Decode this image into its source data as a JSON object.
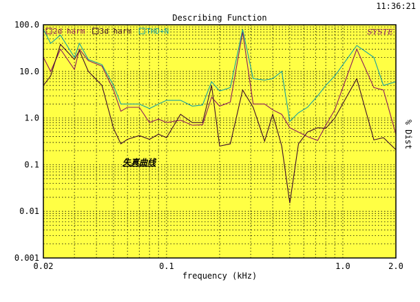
{
  "window": {
    "clock": "11:36:21"
  },
  "colors": {
    "plot_bg": "#ffff44",
    "grid": "#000000",
    "frame": "#000000",
    "series_2d": "#8b1a5a",
    "series_3d": "#3a0a2a",
    "series_thdn": "#16a0a0",
    "brand": "#8a1a6a",
    "page_bg": "#ffffff"
  },
  "brand_mark": "SYSTE",
  "annotation": "失真曲线",
  "chart_data": {
    "type": "line",
    "title": "Describing Function",
    "xlabel": "frequency (kHz)",
    "ylabel": "% Dist",
    "x_scale": "log",
    "y_scale": "log",
    "xlim": [
      0.02,
      2.0
    ],
    "ylim": [
      0.001,
      100.0
    ],
    "grid": true,
    "legend_position": "top-left",
    "x_ticks": [
      {
        "value": 0.02,
        "label": "0.02"
      },
      {
        "value": 0.1,
        "label": "0.1"
      },
      {
        "value": 1.0,
        "label": "1.0"
      },
      {
        "value": 2.0,
        "label": "2.0"
      }
    ],
    "y_ticks": [
      {
        "value": 100,
        "label": "100.0"
      },
      {
        "value": 10,
        "label": "10.0"
      },
      {
        "value": 1,
        "label": "1.0"
      },
      {
        "value": 0.1,
        "label": "0.1"
      },
      {
        "value": 0.01,
        "label": "0.01"
      },
      {
        "value": 0.001,
        "label": "0.001"
      }
    ],
    "series": [
      {
        "name": "2d harm",
        "color": "#8b1a5a",
        "points": [
          [
            0.02,
            20
          ],
          [
            0.022,
            10
          ],
          [
            0.025,
            30
          ],
          [
            0.03,
            11
          ],
          [
            0.032,
            30
          ],
          [
            0.036,
            17
          ],
          [
            0.043,
            13
          ],
          [
            0.05,
            4
          ],
          [
            0.055,
            1.4
          ],
          [
            0.06,
            1.7
          ],
          [
            0.07,
            1.7
          ],
          [
            0.08,
            0.8
          ],
          [
            0.09,
            0.95
          ],
          [
            0.1,
            0.8
          ],
          [
            0.12,
            0.9
          ],
          [
            0.14,
            0.7
          ],
          [
            0.16,
            0.72
          ],
          [
            0.18,
            2.8
          ],
          [
            0.2,
            1.8
          ],
          [
            0.23,
            2.2
          ],
          [
            0.27,
            70
          ],
          [
            0.31,
            2.0
          ],
          [
            0.36,
            2.0
          ],
          [
            0.4,
            1.5
          ],
          [
            0.45,
            1.2
          ],
          [
            0.5,
            0.62
          ],
          [
            0.56,
            0.5
          ],
          [
            0.63,
            0.4
          ],
          [
            0.72,
            0.33
          ],
          [
            0.8,
            0.7
          ],
          [
            0.9,
            1.5
          ],
          [
            1.2,
            30
          ],
          [
            1.5,
            4.5
          ],
          [
            1.7,
            4.0
          ],
          [
            2.0,
            0.45
          ]
        ]
      },
      {
        "name": "3d harm",
        "color": "#3a0a2a",
        "points": [
          [
            0.02,
            5
          ],
          [
            0.022,
            8
          ],
          [
            0.025,
            38
          ],
          [
            0.03,
            18
          ],
          [
            0.032,
            28
          ],
          [
            0.036,
            10
          ],
          [
            0.043,
            5
          ],
          [
            0.05,
            0.6
          ],
          [
            0.055,
            0.28
          ],
          [
            0.06,
            0.35
          ],
          [
            0.07,
            0.42
          ],
          [
            0.08,
            0.35
          ],
          [
            0.09,
            0.45
          ],
          [
            0.1,
            0.38
          ],
          [
            0.12,
            1.2
          ],
          [
            0.14,
            0.8
          ],
          [
            0.16,
            0.8
          ],
          [
            0.18,
            5.0
          ],
          [
            0.2,
            0.25
          ],
          [
            0.23,
            0.28
          ],
          [
            0.27,
            4.0
          ],
          [
            0.31,
            1.7
          ],
          [
            0.36,
            0.32
          ],
          [
            0.4,
            1.2
          ],
          [
            0.45,
            0.25
          ],
          [
            0.5,
            0.015
          ],
          [
            0.56,
            0.28
          ],
          [
            0.63,
            0.5
          ],
          [
            0.72,
            0.62
          ],
          [
            0.8,
            0.6
          ],
          [
            0.9,
            1.0
          ],
          [
            1.2,
            7.0
          ],
          [
            1.5,
            0.34
          ],
          [
            1.7,
            0.38
          ],
          [
            2.0,
            0.21
          ]
        ]
      },
      {
        "name": "THD+N",
        "color": "#16a0a0",
        "points": [
          [
            0.02,
            80
          ],
          [
            0.022,
            40
          ],
          [
            0.025,
            60
          ],
          [
            0.03,
            20
          ],
          [
            0.032,
            40
          ],
          [
            0.036,
            18
          ],
          [
            0.043,
            14
          ],
          [
            0.05,
            5
          ],
          [
            0.055,
            2.0
          ],
          [
            0.06,
            2.0
          ],
          [
            0.07,
            2.0
          ],
          [
            0.08,
            1.6
          ],
          [
            0.09,
            2.0
          ],
          [
            0.1,
            2.4
          ],
          [
            0.12,
            2.4
          ],
          [
            0.14,
            1.8
          ],
          [
            0.16,
            1.9
          ],
          [
            0.18,
            6.0
          ],
          [
            0.2,
            3.8
          ],
          [
            0.23,
            4.5
          ],
          [
            0.27,
            80
          ],
          [
            0.31,
            7.0
          ],
          [
            0.36,
            6.5
          ],
          [
            0.4,
            7.0
          ],
          [
            0.45,
            10
          ],
          [
            0.5,
            0.85
          ],
          [
            0.56,
            1.3
          ],
          [
            0.63,
            1.7
          ],
          [
            0.72,
            3.0
          ],
          [
            0.8,
            5.0
          ],
          [
            0.9,
            8.0
          ],
          [
            1.2,
            36
          ],
          [
            1.5,
            20
          ],
          [
            1.7,
            5.0
          ],
          [
            2.0,
            6.0
          ]
        ]
      }
    ]
  }
}
